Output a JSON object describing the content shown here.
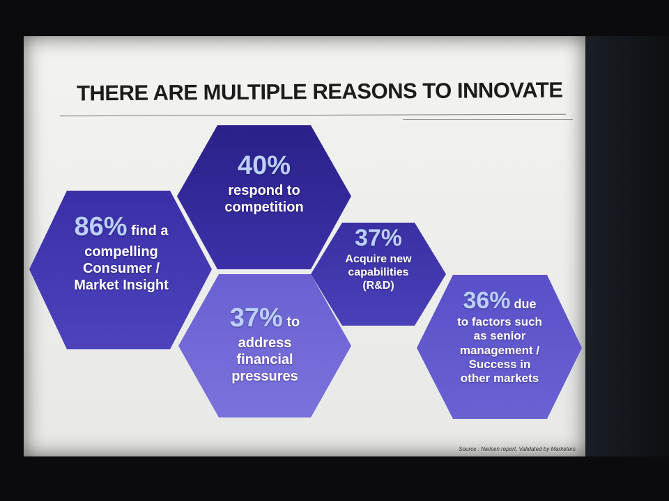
{
  "slide": {
    "title": "THERE ARE MULTIPLE REASONS TO INNOVATE",
    "source": "Source : Nielsen report, Validated by Marketers"
  },
  "colors": {
    "hex_dark": "#2d2590",
    "hex_mid": "#4a3fb8",
    "hex_light": "#6f66d6",
    "percent_text": "#bcd0ff"
  },
  "reasons": [
    {
      "percent": "86%",
      "lead": " find a",
      "lines": [
        "compelling",
        "Consumer /",
        "Market Insight"
      ]
    },
    {
      "percent": "40%",
      "lead": "",
      "lines": [
        "respond to",
        "competition"
      ]
    },
    {
      "percent": "37%",
      "lead": " to",
      "lines": [
        "address",
        "financial",
        "pressures"
      ]
    },
    {
      "percent": "37%",
      "lead": "",
      "lines": [
        "Acquire new",
        "capabilities",
        "(R&D)"
      ]
    },
    {
      "percent": "36%",
      "lead": " due",
      "lines": [
        "to factors such",
        "as senior",
        "management /",
        "Success in",
        "other markets"
      ]
    }
  ]
}
